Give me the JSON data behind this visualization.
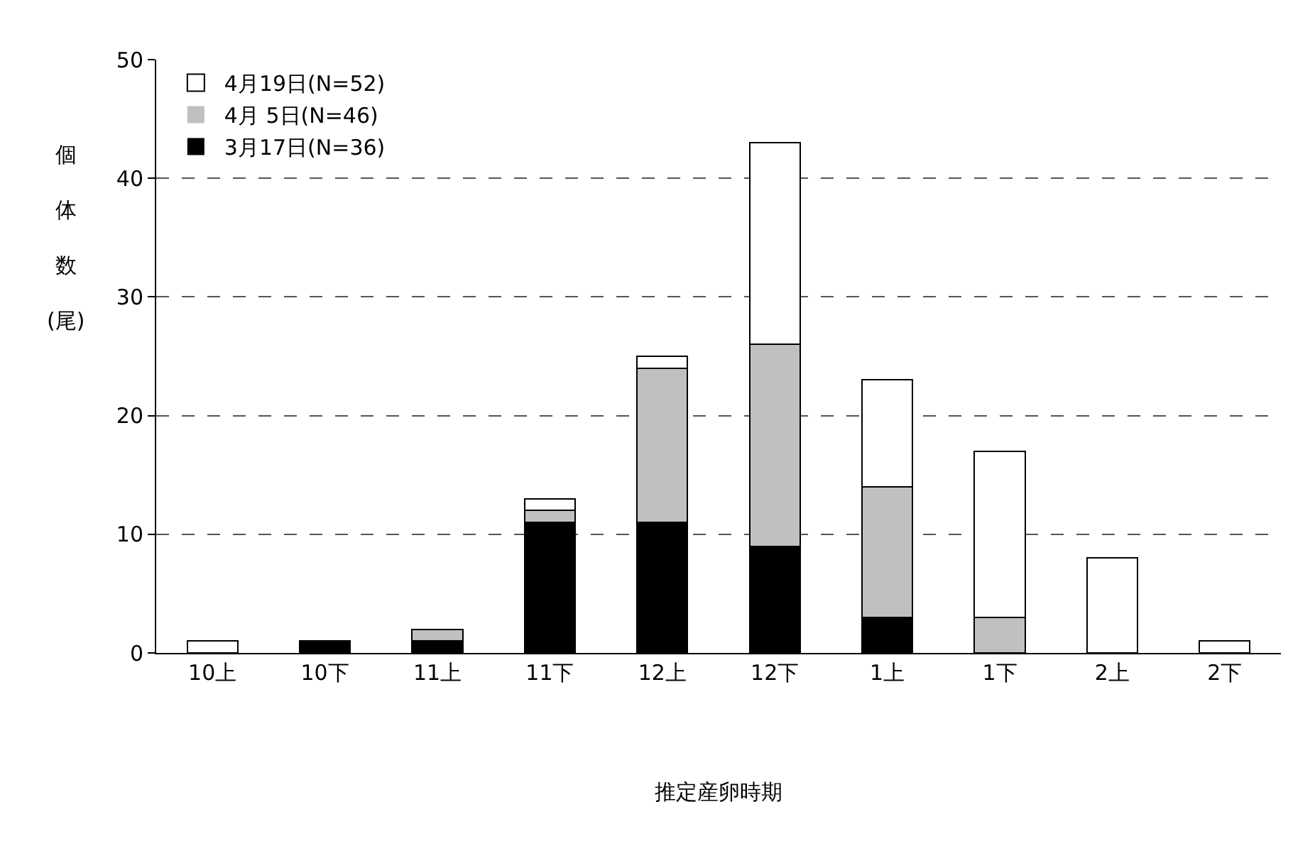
{
  "chart_data": {
    "type": "bar",
    "stacked": true,
    "xlabel": "推定産卵時期",
    "ylabel": "個体数(尾)",
    "categories": [
      "10上",
      "10下",
      "11上",
      "11下",
      "12上",
      "12下",
      "1上",
      "1下",
      "2上",
      "2下"
    ],
    "series": [
      {
        "name": "3月17日(N=36)",
        "color": "#000000",
        "values": [
          0,
          1,
          1,
          11,
          11,
          9,
          3,
          0,
          0,
          0
        ]
      },
      {
        "name": "4月 5日(N=46)",
        "color": "#c0c0c0",
        "values": [
          0,
          0,
          1,
          1,
          13,
          17,
          11,
          3,
          0,
          0
        ]
      },
      {
        "name": "4月19日(N=52)",
        "color": "#ffffff",
        "values": [
          1,
          0,
          0,
          1,
          1,
          17,
          9,
          14,
          8,
          1
        ]
      }
    ],
    "ylim": [
      0,
      50
    ],
    "yticks": [
      0,
      10,
      20,
      30,
      40,
      50
    ],
    "grid": "y",
    "legend": "top left"
  }
}
